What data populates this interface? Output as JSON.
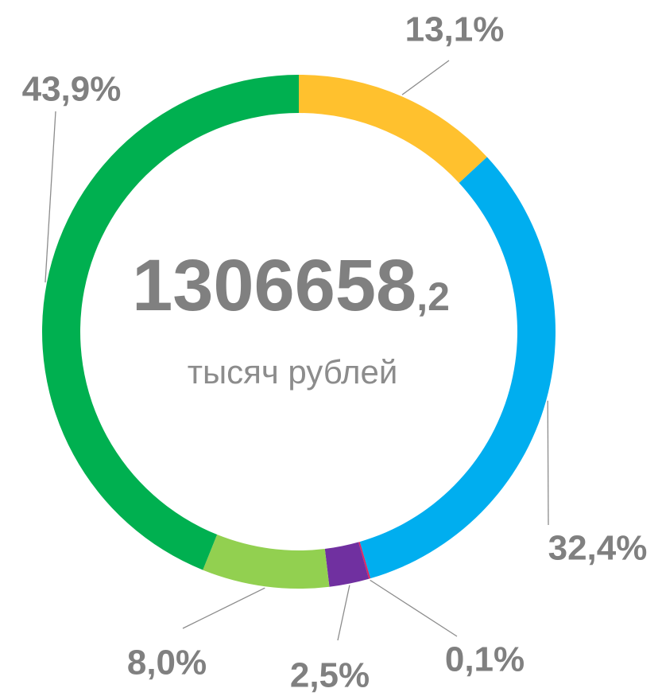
{
  "chart_data": {
    "type": "donut",
    "categories": [
      null,
      null,
      null,
      null,
      null,
      null
    ],
    "values": [
      13.1,
      32.4,
      0.1,
      2.5,
      8.0,
      43.9
    ],
    "value_labels": [
      "13,1%",
      "32,4%",
      "0,1%",
      "2,5%",
      "8,0%",
      "43,9%"
    ],
    "colors": [
      "#FFC12E",
      "#00AEEF",
      "#E0245E",
      "#7030A0",
      "#92D050",
      "#00B050"
    ],
    "total_label": "1306658",
    "total_decimal": ",2",
    "total_unit": "тысяч рублей"
  }
}
